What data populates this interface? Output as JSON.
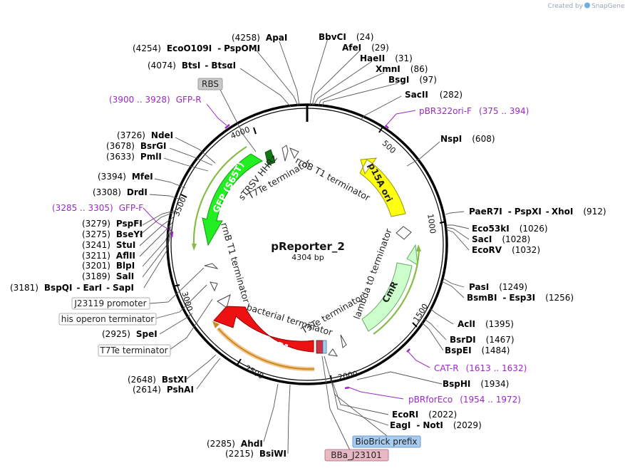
{
  "credit": {
    "prefix": "Created by",
    "brand": "SnapGene"
  },
  "plasmid": {
    "name": "pReporter_2",
    "size": "4304 bp"
  },
  "ticks": [
    "500",
    "1000",
    "1500",
    "2000",
    "2500",
    "3000",
    "3500",
    "4000"
  ],
  "enzymes": {
    "apai": {
      "pos": "(4258)",
      "name": "ApaI"
    },
    "bbvci": {
      "name": "BbvCI",
      "pos": "(24)"
    },
    "eco": {
      "pos": "(4254)",
      "name": "EcoO109I",
      "sep": "-",
      "name2": "PspOMI"
    },
    "afei": {
      "name": "AfeI",
      "pos": "(29)"
    },
    "haeii": {
      "name": "HaeII",
      "pos": "(31)"
    },
    "btsi": {
      "pos": "(4074)",
      "name": "BtsI",
      "sep": "-",
      "name2": "BtsαI"
    },
    "xmni": {
      "name": "XmnI",
      "pos": "(86)"
    },
    "bsgi": {
      "name": "BsgI",
      "pos": "(97)"
    },
    "sacii": {
      "name": "SacII",
      "pos": "(282)"
    },
    "ndei": {
      "pos": "(3726)",
      "name": "NdeI"
    },
    "bsrgi": {
      "pos": "(3678)",
      "name": "BsrGI"
    },
    "pmli": {
      "pos": "(3633)",
      "name": "PmlI"
    },
    "nspi": {
      "name": "NspI",
      "pos": "(608)"
    },
    "mfei": {
      "pos": "(3394)",
      "name": "MfeI"
    },
    "drdi": {
      "pos": "(3308)",
      "name": "DrdI"
    },
    "pspfi": {
      "pos": "(3279)",
      "name": "PspFI"
    },
    "bseyi": {
      "pos": "(3275)",
      "name": "BseYI"
    },
    "stui": {
      "pos": "(3241)",
      "name": "StuI"
    },
    "aflii": {
      "pos": "(3211)",
      "name": "AflII"
    },
    "blpi": {
      "pos": "(3201)",
      "name": "BlpI"
    },
    "sali": {
      "pos": "(3189)",
      "name": "SalI"
    },
    "bspqi": {
      "pos": "(3181)",
      "name": "BspQI",
      "sep": "-",
      "name2": "EarI",
      "sep2": "-",
      "name3": "SapI"
    },
    "pae": {
      "name": "PaeR7I",
      "sep": "-",
      "name2": "PspXI",
      "sep2": "-",
      "name3": "XhoI",
      "pos": "(912)"
    },
    "eco53": {
      "name": "Eco53kI",
      "pos": "(1026)"
    },
    "saci": {
      "name": "SacI",
      "pos": "(1028)"
    },
    "ecorv": {
      "name": "EcoRV",
      "pos": "(1032)"
    },
    "pasi": {
      "name": "PasI",
      "pos": "(1249)"
    },
    "bsmbi": {
      "name": "BsmBI",
      "sep": "-",
      "name2": "Esp3I",
      "pos": "(1256)"
    },
    "acli": {
      "name": "AclI",
      "pos": "(1395)"
    },
    "bsrdi": {
      "name": "BsrDI",
      "pos": "(1467)"
    },
    "bspei": {
      "name": "BspEI",
      "pos": "(1484)"
    },
    "spei": {
      "pos": "(2925)",
      "name": "SpeI"
    },
    "bsphi": {
      "name": "BspHI",
      "pos": "(1934)"
    },
    "bstxi": {
      "pos": "(2648)",
      "name": "BstXI"
    },
    "pshai": {
      "pos": "(2614)",
      "name": "PshAI"
    },
    "ecori": {
      "name": "EcoRI",
      "pos": "(2022)"
    },
    "eagi": {
      "name": "EagI",
      "sep": "-",
      "name2": "NotI",
      "pos": "(2029)"
    },
    "ahdi": {
      "pos": "(2285)",
      "name": "AhdI"
    },
    "bsiwi": {
      "pos": "(2215)",
      "name": "BsiWI"
    }
  },
  "primers": {
    "gfpr": {
      "range": "(3900 .. 3928)",
      "name": "GFP-R"
    },
    "pbr322": {
      "name": "pBR322ori-F",
      "range": "(375 .. 394)"
    },
    "gfpf": {
      "range": "(3285 .. 3305)",
      "name": "GFP-F"
    },
    "catr": {
      "name": "CAT-R",
      "range": "(1613 .. 1632)"
    },
    "pbrfor": {
      "name": "pBRforEco",
      "range": "(1954 .. 1972)"
    }
  },
  "boxed_labels": {
    "rbs": "RBS",
    "j23119": "J23119 promoter",
    "his": "his operon terminator",
    "t7te": "T7Te terminator",
    "biobrick": "BioBrick prefix",
    "bba": "BBa_J23101"
  },
  "features": {
    "gfp": "GFP (S65T)",
    "p15a": "p15A ori",
    "cmr": "CmR",
    "mrfp1": "mRFP1",
    "strsv": "sTRSV HHRz",
    "t7te_in": "T7Te terminator",
    "rrnb_top": "rrnB T1 terminator",
    "rrnb_left": "rrnB T1 terminator",
    "bacterial": "bacterial terminator",
    "t3te": "T3Te terminator",
    "lambda": "lambda t0 terminator"
  },
  "colors": {
    "gfp": "#22ee22",
    "p15a": "#ffff11",
    "cmr": "#ccffcc",
    "mrfp1": "#ee1111",
    "primer": "#9b28c8",
    "rbs_box": "#c8c8c8",
    "biobrick_box": "#a8ccf0",
    "bba_box": "#e8b8c4"
  }
}
